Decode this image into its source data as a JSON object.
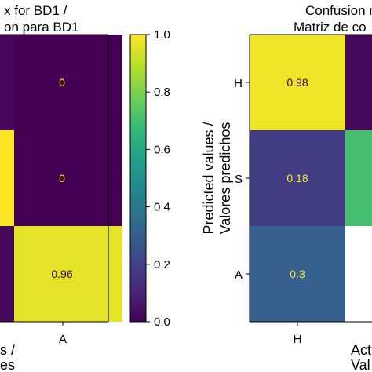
{
  "chart_data": [
    {
      "type": "heatmap",
      "title_lines": [
        "x for BD1 /",
        "on para BD1"
      ],
      "x_tick_labels": [
        "A"
      ],
      "ylabel_lines": [],
      "xlabel_lines": [
        "s /",
        "es"
      ],
      "visible_cells": [
        {
          "row": "H",
          "col": "A",
          "value": 0,
          "label": "0"
        },
        {
          "row": "S",
          "col": "A",
          "value": 0,
          "label": "0"
        },
        {
          "row": "A",
          "col": "A",
          "value": 0.96,
          "label": "0.96"
        }
      ],
      "partial_cells": [
        {
          "row": "H",
          "col": "S",
          "value": 0.02
        },
        {
          "row": "S",
          "col": "S",
          "value": 0.02
        },
        {
          "row": "S",
          "col": "Unknown",
          "value": 1.0
        },
        {
          "row": "A",
          "col": "S",
          "value": 0.02
        }
      ]
    },
    {
      "type": "colorbar",
      "ticks": [
        "1.0",
        "0.8",
        "0.6",
        "0.4",
        "0.2",
        "0.0"
      ],
      "tick_values": [
        1.0,
        0.8,
        0.6,
        0.4,
        0.2,
        0.0
      ],
      "colormap": "viridis",
      "range": [
        0,
        1
      ]
    },
    {
      "type": "heatmap",
      "title_lines": [
        "Confusion m",
        "Matriz de co"
      ],
      "y_tick_labels": [
        "H",
        "S",
        "A"
      ],
      "x_tick_labels": [
        "H"
      ],
      "ylabel_lines": [
        "Predicted values /",
        "Valores predichos"
      ],
      "xlabel_lines": [
        "Act",
        "Val"
      ],
      "visible_cells": [
        {
          "row": "H",
          "col": "H",
          "value": 0.98,
          "label": "0.98"
        },
        {
          "row": "S",
          "col": "H",
          "value": 0.18,
          "label": "0.18"
        },
        {
          "row": "A",
          "col": "H",
          "value": 0.3,
          "label": "0.3"
        }
      ],
      "partial_cells": [
        {
          "row": "H",
          "col": "S",
          "value": 0.02
        },
        {
          "row": "S",
          "col": "S",
          "value": 0.7
        }
      ]
    }
  ],
  "colors": {
    "cmap_stops": [
      "#440154",
      "#482878",
      "#3e4989",
      "#31688e",
      "#26828e",
      "#1f9e89",
      "#35b779",
      "#6ece58",
      "#b5de2b",
      "#fde725"
    ],
    "low_text": "#fde725",
    "high_text": "#440154"
  }
}
